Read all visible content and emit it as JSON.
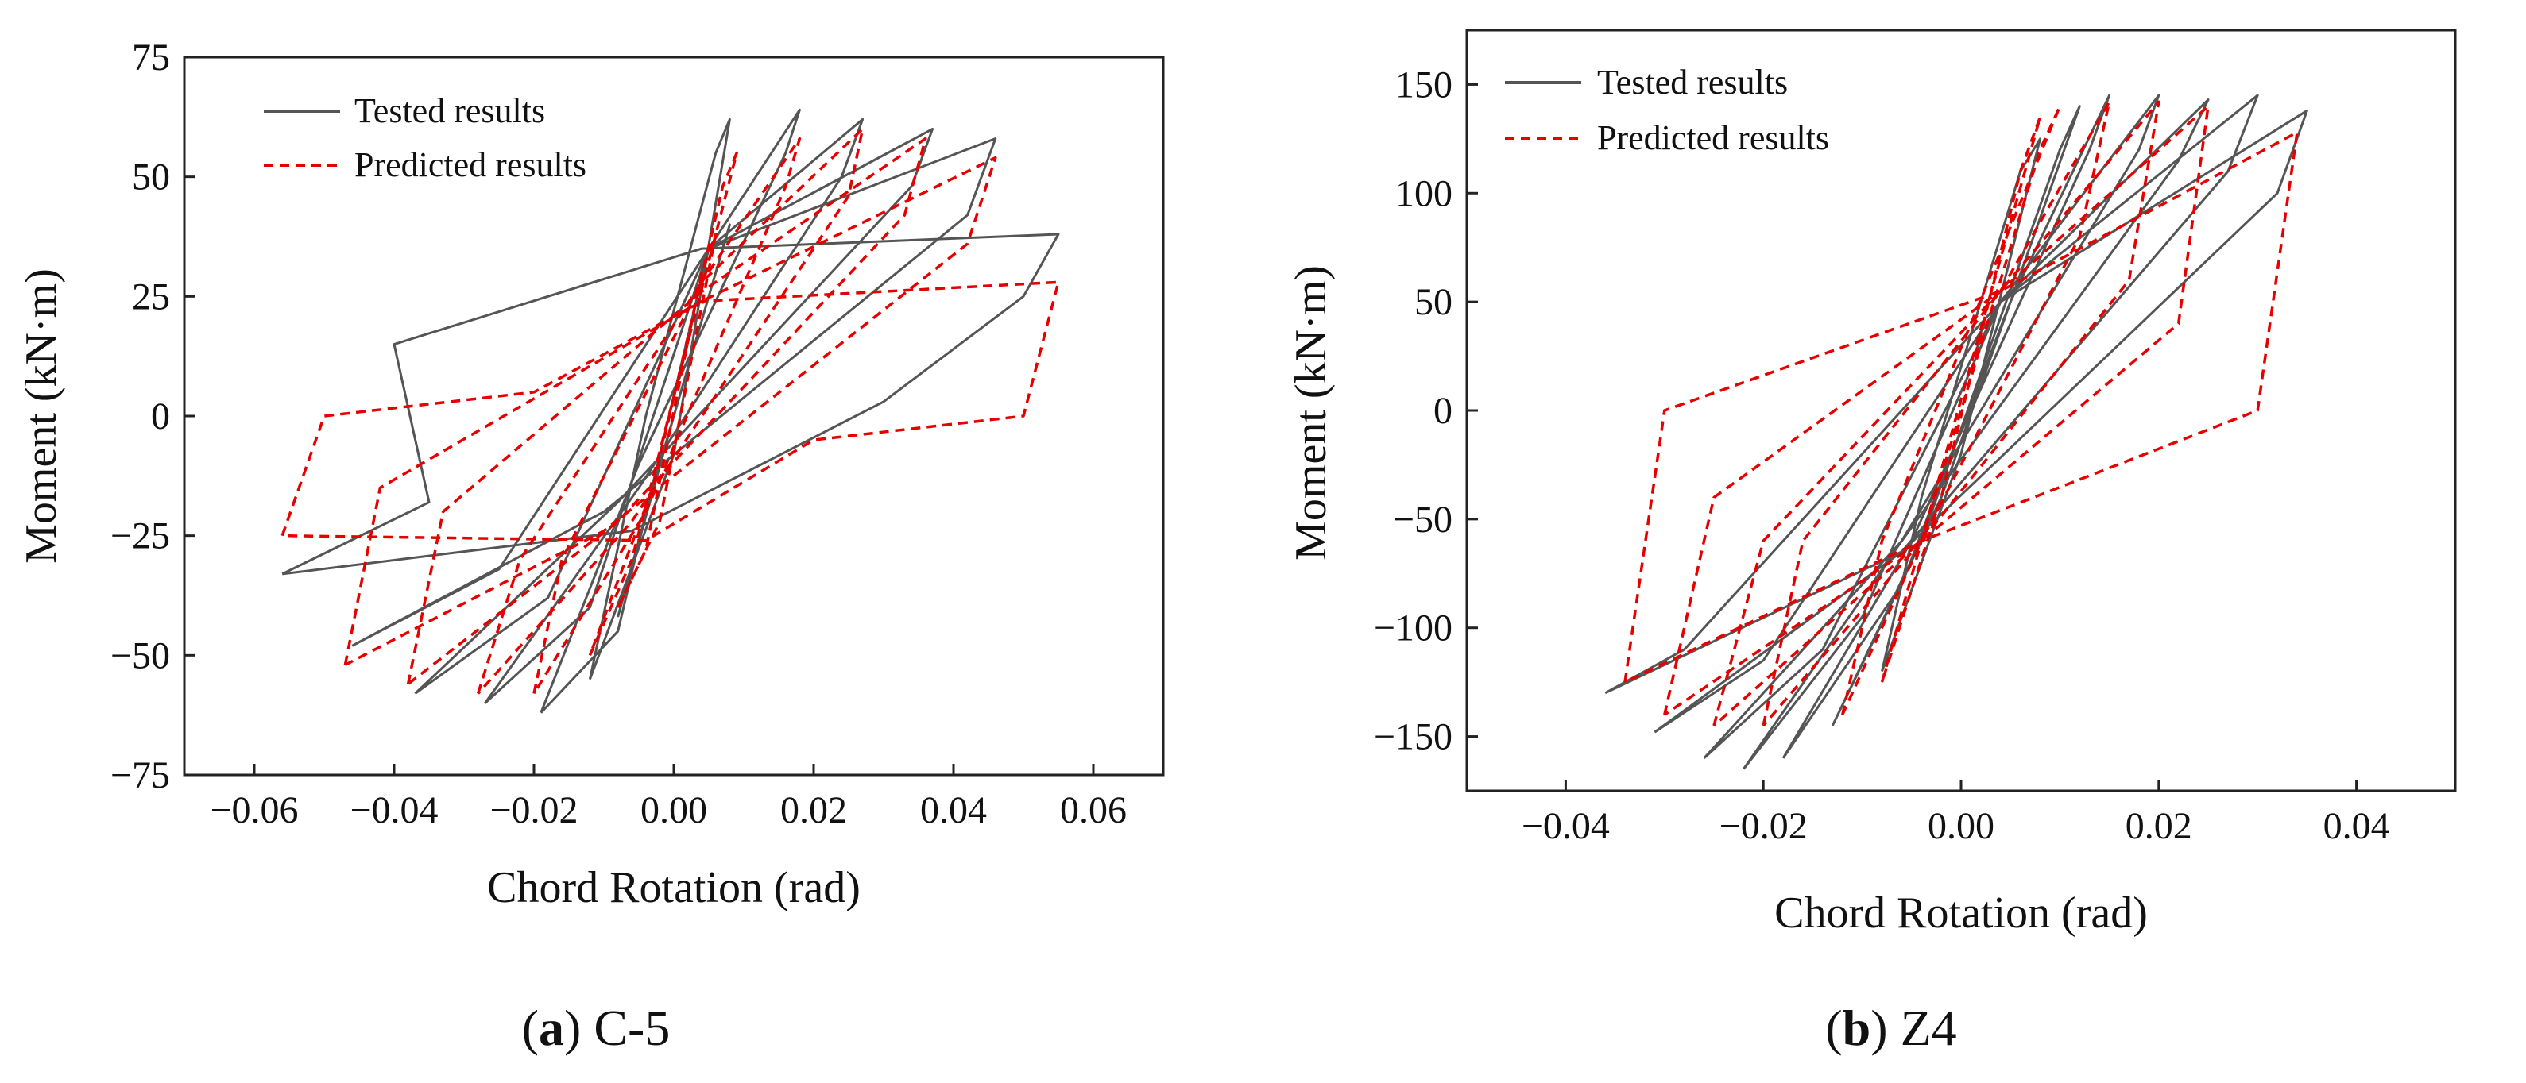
{
  "chart_data": [
    {
      "type": "line",
      "title": "",
      "caption_letter": "a",
      "caption_specimen": "C-5",
      "xlabel": "Chord Rotation (rad)",
      "ylabel": "Moment (kN·m)",
      "xlim": [
        -0.07,
        0.07
      ],
      "ylim": [
        -75,
        75
      ],
      "xticks": [
        -0.06,
        -0.04,
        -0.02,
        0.0,
        0.02,
        0.04,
        0.06
      ],
      "xtick_labels": [
        "−0.06",
        "−0.04",
        "−0.02",
        "0.00",
        "0.02",
        "0.04",
        "0.06"
      ],
      "yticks": [
        -75,
        -50,
        -25,
        0,
        25,
        50,
        75
      ],
      "ytick_labels": [
        "−75",
        "−50",
        "−25",
        "0",
        "25",
        "50",
        "75"
      ],
      "legend_position": "top-left",
      "series": [
        {
          "name": "Tested results",
          "color": "#555555",
          "style": "solid",
          "loops": [
            [
              [
                -0.008,
                -42
              ],
              [
                0,
                0
              ],
              [
                0.008,
                40
              ],
              [
                0.006,
                30
              ],
              [
                -0.002,
                -10
              ],
              [
                -0.008,
                -42
              ]
            ],
            [
              [
                -0.012,
                -55
              ],
              [
                0,
                -8
              ],
              [
                0.008,
                62
              ],
              [
                0.006,
                55
              ],
              [
                -0.004,
                0
              ],
              [
                -0.012,
                -55
              ]
            ],
            [
              [
                -0.019,
                -62
              ],
              [
                -0.008,
                -45
              ],
              [
                0.005,
                35
              ],
              [
                0.018,
                64
              ],
              [
                0.016,
                55
              ],
              [
                -0.005,
                -10
              ],
              [
                -0.019,
                -62
              ]
            ],
            [
              [
                -0.027,
                -60
              ],
              [
                -0.012,
                -40
              ],
              [
                0.005,
                35
              ],
              [
                0.027,
                62
              ],
              [
                0.024,
                50
              ],
              [
                -0.005,
                -15
              ],
              [
                -0.027,
                -60
              ]
            ],
            [
              [
                -0.037,
                -58
              ],
              [
                -0.018,
                -38
              ],
              [
                0.005,
                35
              ],
              [
                0.037,
                60
              ],
              [
                0.034,
                48
              ],
              [
                -0.008,
                -18
              ],
              [
                -0.037,
                -58
              ]
            ],
            [
              [
                -0.046,
                -48
              ],
              [
                -0.025,
                -32
              ],
              [
                0.005,
                35
              ],
              [
                0.046,
                58
              ],
              [
                0.042,
                42
              ],
              [
                -0.01,
                -20
              ],
              [
                -0.046,
                -48
              ]
            ],
            [
              [
                -0.056,
                -33
              ],
              [
                -0.035,
                -18
              ],
              [
                -0.04,
                15
              ],
              [
                0.004,
                35
              ],
              [
                0.055,
                38
              ],
              [
                0.05,
                25
              ],
              [
                0.03,
                3
              ],
              [
                -0.006,
                -24
              ],
              [
                -0.056,
                -33
              ]
            ]
          ]
        },
        {
          "name": "Predicted results",
          "color": "#e60000",
          "style": "dashed",
          "loops": [
            [
              [
                -0.008,
                -40
              ],
              [
                -0.002,
                -22
              ],
              [
                0.006,
                38
              ],
              [
                0.004,
                30
              ],
              [
                -0.004,
                -28
              ],
              [
                -0.008,
                -40
              ]
            ],
            [
              [
                -0.012,
                -50
              ],
              [
                -0.006,
                -30
              ],
              [
                0.009,
                55
              ],
              [
                0.007,
                48
              ],
              [
                -0.003,
                -15
              ],
              [
                -0.012,
                -50
              ]
            ],
            [
              [
                -0.02,
                -58
              ],
              [
                -0.016,
                -30
              ],
              [
                0.004,
                28
              ],
              [
                0.018,
                58
              ],
              [
                0.016,
                48
              ],
              [
                -0.004,
                -20
              ],
              [
                -0.02,
                -58
              ]
            ],
            [
              [
                -0.028,
                -58
              ],
              [
                -0.022,
                -30
              ],
              [
                0.004,
                28
              ],
              [
                0.027,
                60
              ],
              [
                0.025,
                46
              ],
              [
                -0.006,
                -22
              ],
              [
                -0.028,
                -58
              ]
            ],
            [
              [
                -0.038,
                -56
              ],
              [
                -0.033,
                -20
              ],
              [
                0.004,
                26
              ],
              [
                0.036,
                58
              ],
              [
                0.033,
                42
              ],
              [
                -0.008,
                -22
              ],
              [
                -0.038,
                -56
              ]
            ],
            [
              [
                -0.047,
                -52
              ],
              [
                -0.042,
                -15
              ],
              [
                0.004,
                24
              ],
              [
                0.046,
                54
              ],
              [
                0.042,
                36
              ],
              [
                -0.01,
                -24
              ],
              [
                -0.047,
                -52
              ]
            ],
            [
              [
                -0.056,
                -25
              ],
              [
                -0.05,
                0
              ],
              [
                -0.02,
                5
              ],
              [
                0.004,
                24
              ],
              [
                0.055,
                28
              ],
              [
                0.05,
                0
              ],
              [
                0.02,
                -5
              ],
              [
                -0.004,
                -26
              ],
              [
                -0.056,
                -25
              ]
            ]
          ]
        }
      ]
    },
    {
      "type": "line",
      "title": "",
      "caption_letter": "b",
      "caption_specimen": "Z4",
      "xlabel": "Chord Rotation (rad)",
      "ylabel": "Moment (kN·m)",
      "xlim": [
        -0.05,
        0.05
      ],
      "ylim": [
        -175,
        175
      ],
      "xticks": [
        -0.04,
        -0.02,
        0.0,
        0.02,
        0.04
      ],
      "xtick_labels": [
        "−0.04",
        "−0.02",
        "0.00",
        "0.02",
        "0.04"
      ],
      "yticks": [
        -150,
        -100,
        -50,
        0,
        50,
        100,
        150
      ],
      "ytick_labels": [
        "−150",
        "−100",
        "−50",
        "0",
        "50",
        "100",
        "150"
      ],
      "legend_position": "top-left",
      "series": [
        {
          "name": "Tested results",
          "color": "#555555",
          "style": "solid",
          "loops": [
            [
              [
                -0.008,
                -120
              ],
              [
                0,
                -20
              ],
              [
                0.008,
                125
              ],
              [
                0.006,
                110
              ],
              [
                -0.004,
                -40
              ],
              [
                -0.008,
                -120
              ]
            ],
            [
              [
                -0.013,
                -145
              ],
              [
                -0.002,
                -40
              ],
              [
                0.012,
                140
              ],
              [
                0.01,
                120
              ],
              [
                -0.004,
                -60
              ],
              [
                -0.013,
                -145
              ]
            ],
            [
              [
                -0.018,
                -160
              ],
              [
                -0.006,
                -80
              ],
              [
                0.005,
                50
              ],
              [
                0.015,
                145
              ],
              [
                0.013,
                120
              ],
              [
                -0.005,
                -60
              ],
              [
                -0.018,
                -160
              ]
            ],
            [
              [
                -0.022,
                -165
              ],
              [
                -0.01,
                -95
              ],
              [
                0.004,
                50
              ],
              [
                0.02,
                145
              ],
              [
                0.018,
                120
              ],
              [
                -0.006,
                -60
              ],
              [
                -0.022,
                -165
              ]
            ],
            [
              [
                -0.026,
                -160
              ],
              [
                -0.014,
                -110
              ],
              [
                0.004,
                50
              ],
              [
                0.025,
                143
              ],
              [
                0.022,
                115
              ],
              [
                -0.006,
                -60
              ],
              [
                -0.026,
                -160
              ]
            ],
            [
              [
                -0.031,
                -148
              ],
              [
                -0.02,
                -115
              ],
              [
                0.004,
                50
              ],
              [
                0.03,
                145
              ],
              [
                0.027,
                110
              ],
              [
                -0.006,
                -65
              ],
              [
                -0.031,
                -148
              ]
            ],
            [
              [
                -0.036,
                -130
              ],
              [
                -0.028,
                -110
              ],
              [
                0.004,
                50
              ],
              [
                0.035,
                138
              ],
              [
                0.032,
                100
              ],
              [
                -0.006,
                -65
              ],
              [
                -0.036,
                -130
              ]
            ]
          ]
        },
        {
          "name": "Predicted results",
          "color": "#e60000",
          "style": "dashed",
          "loops": [
            [
              [
                -0.008,
                -125
              ],
              [
                -0.004,
                -60
              ],
              [
                0.008,
                135
              ],
              [
                0.006,
                110
              ],
              [
                -0.002,
                -40
              ],
              [
                -0.008,
                -125
              ]
            ],
            [
              [
                -0.012,
                -140
              ],
              [
                -0.008,
                -60
              ],
              [
                0.01,
                140
              ],
              [
                0.008,
                120
              ],
              [
                -0.004,
                -60
              ],
              [
                -0.012,
                -140
              ]
            ],
            [
              [
                -0.02,
                -145
              ],
              [
                -0.016,
                -60
              ],
              [
                0.004,
                55
              ],
              [
                0.015,
                142
              ],
              [
                0.012,
                80
              ],
              [
                -0.004,
                -60
              ],
              [
                -0.02,
                -145
              ]
            ],
            [
              [
                -0.025,
                -145
              ],
              [
                -0.02,
                -60
              ],
              [
                0.004,
                55
              ],
              [
                0.02,
                142
              ],
              [
                0.017,
                60
              ],
              [
                -0.004,
                -60
              ],
              [
                -0.025,
                -145
              ]
            ],
            [
              [
                -0.03,
                -140
              ],
              [
                -0.025,
                -40
              ],
              [
                0.004,
                55
              ],
              [
                0.025,
                140
              ],
              [
                0.022,
                40
              ],
              [
                -0.004,
                -60
              ],
              [
                -0.03,
                -140
              ]
            ],
            [
              [
                -0.034,
                -125
              ],
              [
                -0.03,
                0
              ],
              [
                0.004,
                55
              ],
              [
                0.034,
                128
              ],
              [
                0.03,
                0
              ],
              [
                -0.004,
                -60
              ],
              [
                -0.034,
                -125
              ]
            ]
          ]
        }
      ]
    }
  ]
}
